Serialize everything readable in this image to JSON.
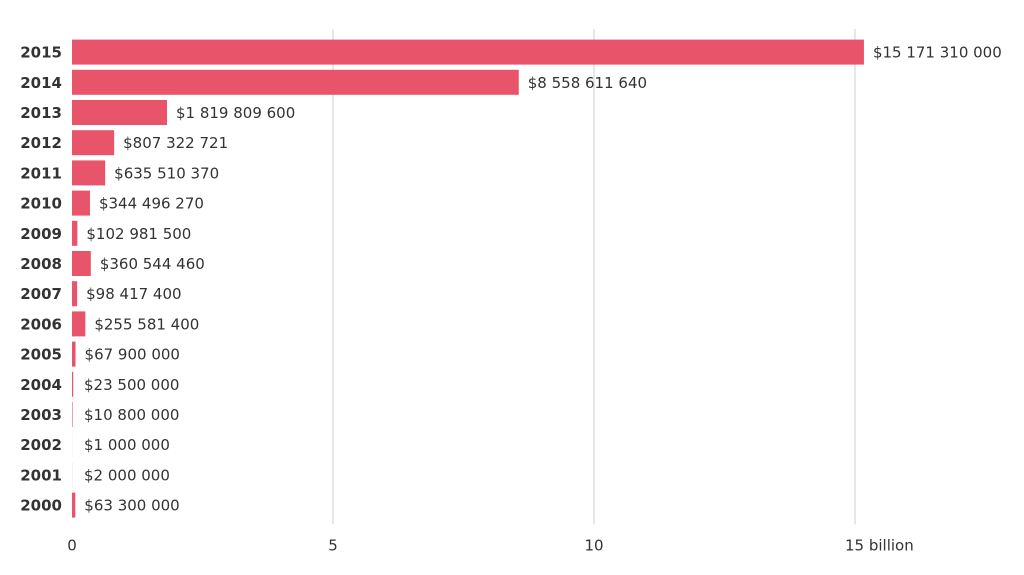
{
  "chart_data": {
    "type": "hbar",
    "categories": [
      "2015",
      "2014",
      "2013",
      "2012",
      "2011",
      "2010",
      "2009",
      "2008",
      "2007",
      "2006",
      "2005",
      "2004",
      "2003",
      "2002",
      "2001",
      "2000"
    ],
    "values": [
      15.17131,
      8.55861164,
      1.8198096,
      0.807322721,
      0.63551037,
      0.34449627,
      0.1029815,
      0.36054446,
      0.0984174,
      0.2555814,
      0.0679,
      0.0235,
      0.0108,
      0.001,
      0.002,
      0.0633
    ],
    "value_labels": [
      "$15 171 310 000",
      "$8 558 611 640",
      "$1 819 809 600",
      "$807 322 721",
      "$635 510 370",
      "$344 496 270",
      "$102 981 500",
      "$360 544 460",
      "$98 417 400",
      "$255 581 400",
      "$67 900 000",
      "$23 500 000",
      "$10 800 000",
      "$1 000 000",
      "$2 000 000",
      "$63 300 000"
    ],
    "color": "#e8546a",
    "xlim": [
      0,
      18
    ],
    "xticks": [
      0,
      5,
      10,
      {
        "value": 15,
        "label": "15 billion"
      }
    ],
    "grid": true
  }
}
